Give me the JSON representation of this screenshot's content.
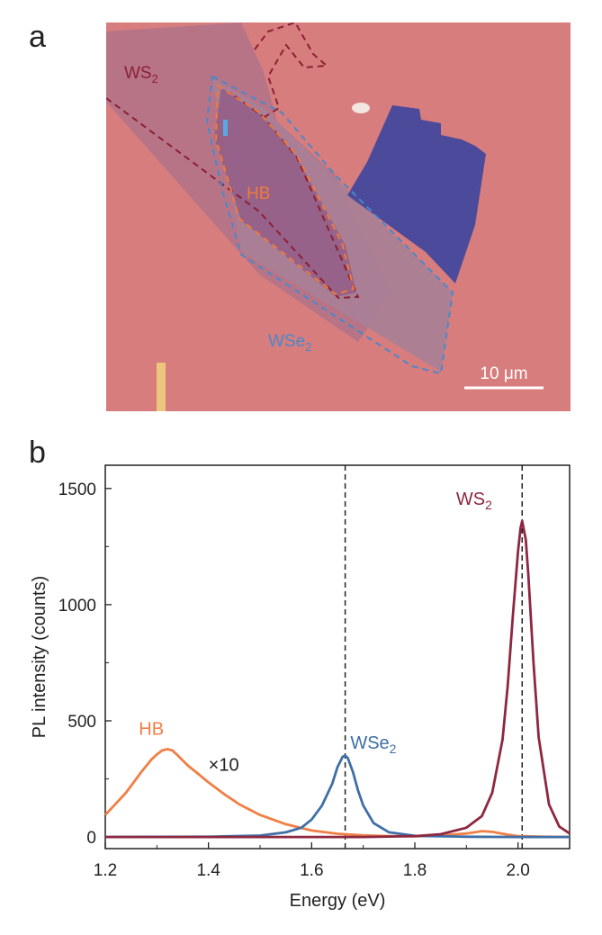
{
  "panels": {
    "a_label": "a",
    "b_label": "b"
  },
  "micrograph": {
    "labels": {
      "ws2": "WS",
      "ws2_sub": "2",
      "hb": "HB",
      "wse2": "WSe",
      "wse2_sub": "2"
    },
    "scale_bar": "10 μm",
    "colors": {
      "substrate": "#d77d7d",
      "ws2_region": "#b37288",
      "wse2_region": "#a97f96",
      "hb_region": "#8f5a86",
      "thick_flake": "#4c4a9a",
      "ws2_outline": "#8c1f35",
      "hb_outline": "#f07a3a",
      "wse2_outline": "#4a88c9"
    }
  },
  "chart_data": {
    "type": "line",
    "xlabel": "Energy (eV)",
    "ylabel": "PL intensity (counts)",
    "xlim": [
      1.2,
      2.1
    ],
    "ylim": [
      -50,
      1600
    ],
    "xticks": [
      "1.2",
      "1.4",
      "1.6",
      "1.8",
      "2.0"
    ],
    "xtick_values": [
      1.2,
      1.4,
      1.6,
      1.8,
      2.0
    ],
    "yticks": [
      "0",
      "500",
      "1000",
      "1500"
    ],
    "ytick_values": [
      0,
      500,
      1000,
      1500
    ],
    "grid": false,
    "vlines": [
      1.665,
      2.008
    ],
    "annotation": "×10",
    "series": [
      {
        "name": "HB",
        "color": "#ef7f45",
        "x": [
          1.2,
          1.24,
          1.27,
          1.29,
          1.3,
          1.31,
          1.32,
          1.33,
          1.34,
          1.36,
          1.38,
          1.4,
          1.43,
          1.46,
          1.5,
          1.55,
          1.6,
          1.65,
          1.7,
          1.75,
          1.8,
          1.85,
          1.9,
          1.93,
          1.95,
          1.98,
          2.0,
          2.05,
          2.1
        ],
        "values": [
          95,
          190,
          280,
          335,
          355,
          372,
          378,
          373,
          352,
          308,
          272,
          235,
          185,
          140,
          95,
          55,
          28,
          14,
          7,
          4,
          3,
          6,
          15,
          25,
          22,
          10,
          4,
          1,
          0
        ]
      },
      {
        "name": "WSe",
        "name_sub": "2",
        "color": "#3f6fa6",
        "x": [
          1.2,
          1.4,
          1.5,
          1.55,
          1.58,
          1.6,
          1.62,
          1.64,
          1.65,
          1.66,
          1.665,
          1.67,
          1.68,
          1.69,
          1.7,
          1.72,
          1.75,
          1.8,
          1.9,
          2.0,
          2.1
        ],
        "values": [
          0,
          1,
          6,
          20,
          40,
          75,
          135,
          230,
          300,
          345,
          350,
          340,
          280,
          200,
          135,
          60,
          20,
          5,
          1,
          0,
          0
        ]
      },
      {
        "name": "WS",
        "name_sub": "2",
        "color": "#8e2840",
        "x": [
          1.2,
          1.7,
          1.8,
          1.85,
          1.9,
          1.93,
          1.95,
          1.97,
          1.98,
          1.99,
          2.0,
          2.005,
          2.008,
          2.015,
          2.02,
          2.03,
          2.04,
          2.06,
          2.08,
          2.1
        ],
        "values": [
          0,
          0,
          4,
          12,
          40,
          90,
          190,
          420,
          650,
          950,
          1230,
          1330,
          1360,
          1280,
          1130,
          750,
          430,
          140,
          45,
          15
        ]
      }
    ]
  }
}
